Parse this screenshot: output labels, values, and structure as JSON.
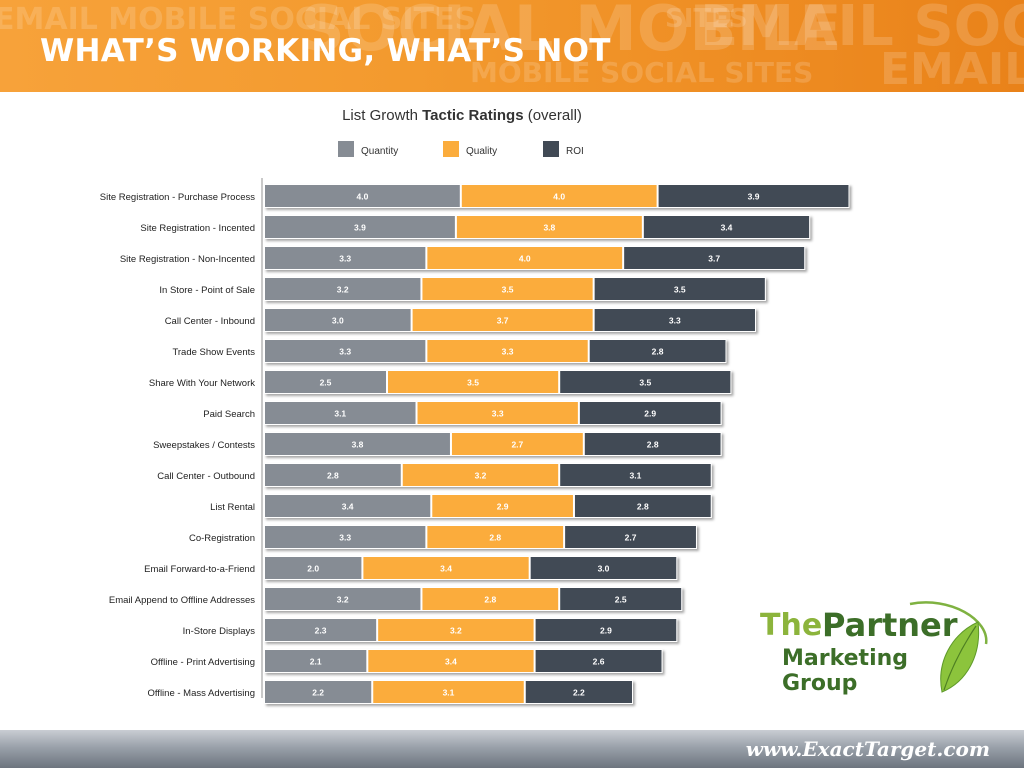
{
  "slide": {
    "title": "WHAT’S WORKING, WHAT’S NOT",
    "banner_watermark": [
      "EMAIL MOBILE SOCIAL SITES",
      "SOCIAL MOBILE",
      "SITES",
      "EMAIL SOCIAL",
      "MOBILE SOCIAL SITES",
      "EMAIL"
    ],
    "banner_color": "#f39a2e",
    "logo": {
      "the": "The",
      "partner": "Partner",
      "marketing_group": "Marketing Group",
      "leaf_icon": "leaf-icon"
    },
    "footer_url": "www.ExactTarget.com"
  },
  "chart_data": {
    "type": "bar",
    "orientation": "horizontal",
    "stacked": true,
    "title_regular": "List Growth ",
    "title_bold": "Tactic Ratings",
    "title_suffix": " (overall)",
    "legend_position": "top",
    "categories": [
      "Site Registration - Purchase Process",
      "Site Registration - Incented",
      "Site Registration - Non-Incented",
      "In Store - Point of Sale",
      "Call Center - Inbound",
      "Trade Show Events",
      "Share With Your Network",
      "Paid Search",
      "Sweepstakes / Contests",
      "Call Center - Outbound",
      "List Rental",
      "Co-Registration",
      "Email Forward-to-a-Friend",
      "Email Append to Offline Addresses",
      "In-Store Displays",
      "Offline - Print Advertising",
      "Offline - Mass Advertising"
    ],
    "series": [
      {
        "name": "Quantity",
        "color": "#868c94",
        "values": [
          4.0,
          3.9,
          3.3,
          3.2,
          3.0,
          3.3,
          2.5,
          3.1,
          3.8,
          2.8,
          3.4,
          3.3,
          2.0,
          3.2,
          2.3,
          2.1,
          2.2
        ]
      },
      {
        "name": "Quality",
        "color": "#fbac3c",
        "values": [
          4.0,
          3.8,
          4.0,
          3.5,
          3.7,
          3.3,
          3.5,
          3.3,
          2.7,
          3.2,
          2.9,
          2.8,
          3.4,
          2.8,
          3.2,
          3.4,
          3.1
        ]
      },
      {
        "name": "ROI",
        "color": "#414a55",
        "values": [
          3.9,
          3.4,
          3.7,
          3.5,
          3.3,
          2.8,
          3.5,
          2.9,
          2.8,
          3.1,
          2.8,
          2.7,
          3.0,
          2.5,
          2.9,
          2.6,
          2.2
        ]
      }
    ],
    "value_labels": true,
    "grid": false
  }
}
